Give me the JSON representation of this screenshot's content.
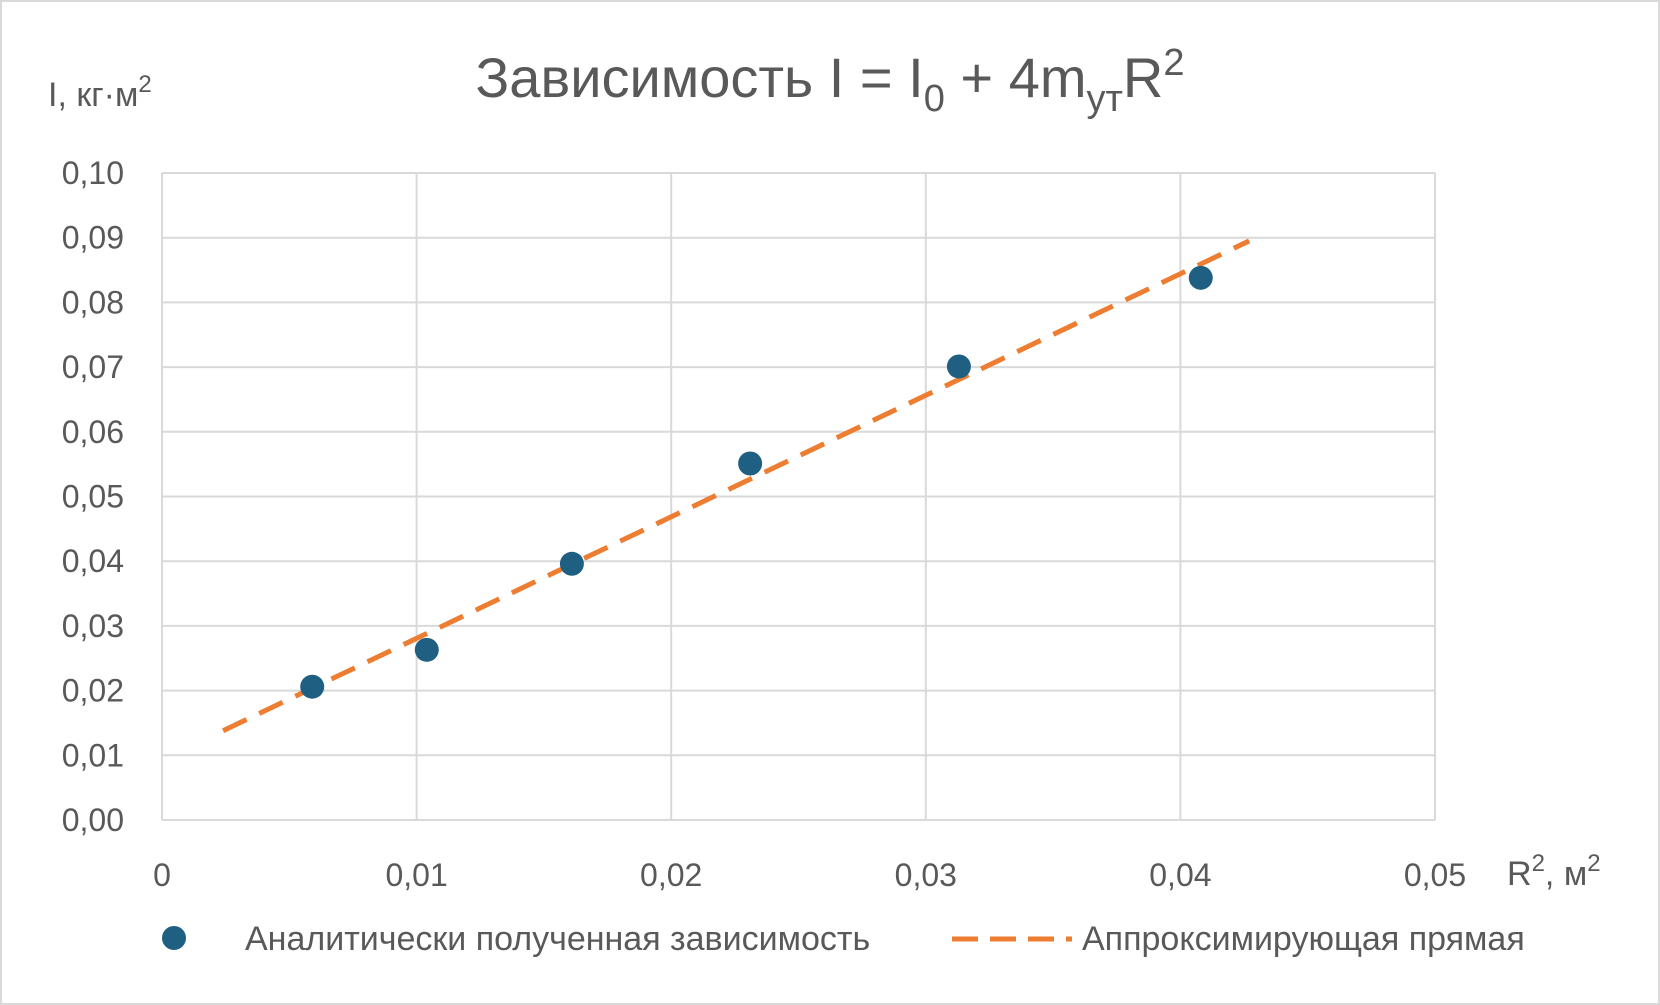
{
  "chart_data": {
    "type": "scatter",
    "title": {
      "main": "Зависимость I = I",
      "sub0": "0",
      "mid": " + 4m",
      "sub_ut": "ут",
      "r": "R",
      "sup2": "2"
    },
    "ylabel": {
      "text": "I, кг·м",
      "sup": "2"
    },
    "xlabel": {
      "pre": "R",
      "sup": "2",
      "post": ", м",
      "sup2": "2"
    },
    "xlim": [
      0,
      0.05
    ],
    "ylim": [
      0,
      0.1
    ],
    "x_ticks": [
      0,
      0.01,
      0.02,
      0.03,
      0.04,
      0.05
    ],
    "x_tick_labels": [
      "0",
      "0,01",
      "0,02",
      "0,03",
      "0,04",
      "0,05"
    ],
    "y_ticks": [
      0,
      0.01,
      0.02,
      0.03,
      0.04,
      0.05,
      0.06,
      0.07,
      0.08,
      0.09,
      0.1
    ],
    "y_tick_labels": [
      "0,00",
      "0,01",
      "0,02",
      "0,03",
      "0,04",
      "0,05",
      "0,06",
      "0,07",
      "0,08",
      "0,09",
      "0,10"
    ],
    "grid": true,
    "legend_position": "bottom",
    "series": [
      {
        "name": "Аналитически полученная зависимость",
        "kind": "points",
        "color": "#1f5f82",
        "x": [
          0.0059,
          0.0104,
          0.0161,
          0.0231,
          0.0313,
          0.0408
        ],
        "y": [
          0.0206,
          0.0263,
          0.0396,
          0.0551,
          0.0701,
          0.0838
        ]
      },
      {
        "name": "Аппроксимирующая прямая",
        "kind": "dashed-line",
        "color": "#ed7d31",
        "x": [
          0.0024,
          0.0427
        ],
        "y": [
          0.0138,
          0.0895
        ]
      }
    ]
  }
}
